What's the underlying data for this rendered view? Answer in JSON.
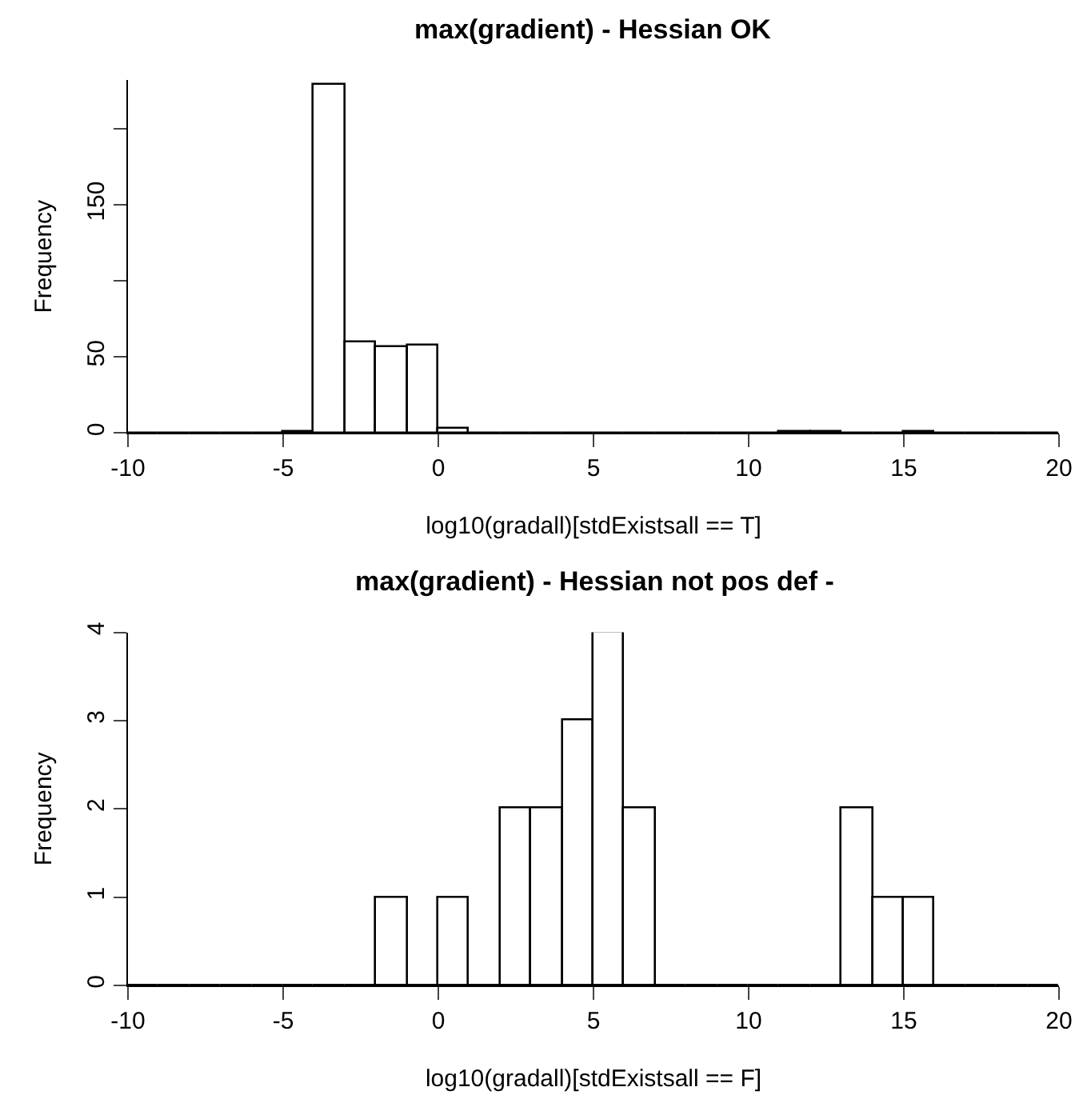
{
  "chart_data": [
    {
      "type": "histogram",
      "title": "max(gradient) - Hessian OK",
      "xlabel": "log10(gradall)[stdExistsall == T]",
      "ylabel": "Frequency",
      "bins": [
        -10,
        -9,
        -8,
        -7,
        -6,
        -5,
        -4,
        -3,
        -2,
        -1,
        0,
        1,
        2,
        3,
        4,
        5,
        6,
        7,
        8,
        9,
        10,
        11,
        12,
        13,
        14,
        15,
        16,
        17,
        18,
        19,
        20
      ],
      "values": [
        0,
        0,
        0,
        0,
        0,
        1,
        229,
        60,
        57,
        58,
        3,
        0,
        0,
        0,
        0,
        0,
        0,
        0,
        0,
        0,
        0,
        1,
        1,
        0,
        0,
        1,
        0,
        0,
        0,
        0
      ],
      "xlim": [
        -10,
        20
      ],
      "xticks": [
        -10,
        -5,
        0,
        5,
        10,
        15,
        20
      ],
      "ylim": [
        0,
        232
      ],
      "yticks": [
        0,
        50,
        {
          "value": 100,
          "label": null
        },
        150,
        {
          "value": 200,
          "label": null
        }
      ]
    },
    {
      "type": "histogram",
      "title": "max(gradient) - Hessian not pos def -",
      "xlabel": "log10(gradall)[stdExistsall == F]",
      "ylabel": "Frequency",
      "bins": [
        -10,
        -9,
        -8,
        -7,
        -6,
        -5,
        -4,
        -3,
        -2,
        -1,
        0,
        1,
        2,
        3,
        4,
        5,
        6,
        7,
        8,
        9,
        10,
        11,
        12,
        13,
        14,
        15,
        16,
        17,
        18,
        19,
        20
      ],
      "values": [
        0,
        0,
        0,
        0,
        0,
        0,
        0,
        0,
        1,
        0,
        1,
        0,
        2,
        2,
        3,
        4,
        2,
        0,
        0,
        0,
        0,
        0,
        0,
        2,
        1,
        1,
        0,
        0,
        0,
        0
      ],
      "xlim": [
        -10,
        20
      ],
      "xticks": [
        -10,
        -5,
        0,
        5,
        10,
        15,
        20
      ],
      "ylim": [
        0,
        4
      ],
      "yticks": [
        0,
        1,
        2,
        3,
        4
      ]
    }
  ]
}
